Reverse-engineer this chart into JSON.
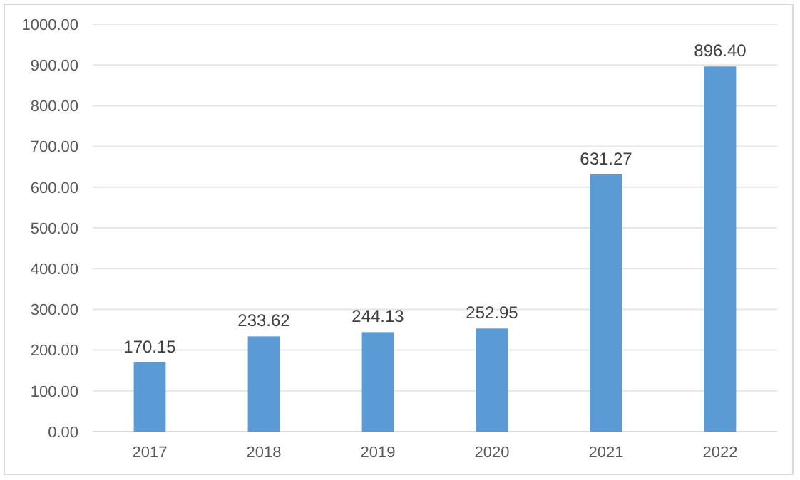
{
  "chart_data": {
    "type": "bar",
    "categories": [
      "2017",
      "2018",
      "2019",
      "2020",
      "2021",
      "2022"
    ],
    "values": [
      170.15,
      233.62,
      244.13,
      252.95,
      631.27,
      896.4
    ],
    "value_labels": [
      "170.15",
      "233.62",
      "244.13",
      "252.95",
      "631.27",
      "896.40"
    ],
    "color": "#5b9bd5",
    "ylim": [
      0,
      1000
    ],
    "yticks": [
      {
        "value": 0,
        "label": "0.00"
      },
      {
        "value": 100,
        "label": "100.00"
      },
      {
        "value": 200,
        "label": "200.00"
      },
      {
        "value": 300,
        "label": "300.00"
      },
      {
        "value": 400,
        "label": "400.00"
      },
      {
        "value": 500,
        "label": "500.00"
      },
      {
        "value": 600,
        "label": "600.00"
      },
      {
        "value": 700,
        "label": "700.00"
      },
      {
        "value": 800,
        "label": "800.00"
      },
      {
        "value": 900,
        "label": "900.00"
      },
      {
        "value": 1000,
        "label": "1000.00"
      }
    ],
    "grid": "y"
  }
}
